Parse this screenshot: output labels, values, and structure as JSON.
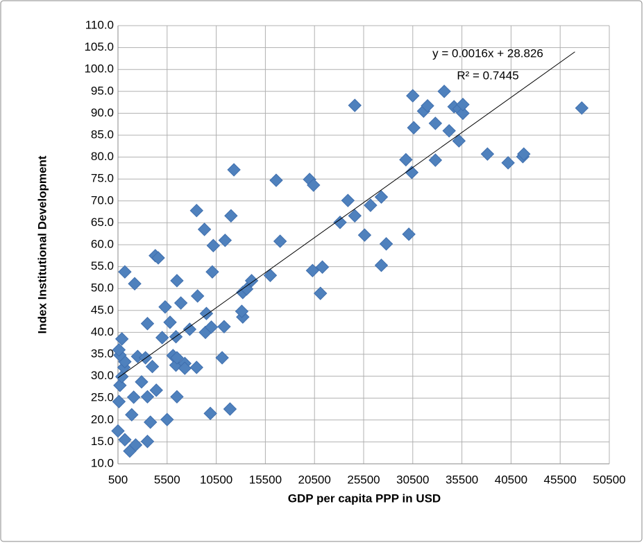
{
  "chart_data": {
    "type": "scatter",
    "x_label": "GDP per capita PPP in USD",
    "y_label": "Index Institutional Development",
    "color": "#4f81bd",
    "x": [
      500,
      1200,
      1700,
      2300,
      600,
      700,
      900,
      1100,
      1200,
      700,
      600,
      900,
      1200,
      2200,
      1900,
      2100,
      2900,
      2500,
      3300,
      3500,
      3500,
      4400,
      4000,
      3500,
      3800,
      4300,
      4600,
      5000,
      5300,
      5800,
      5500,
      6100,
      6400,
      6400,
      6500,
      6500,
      6500,
      6900,
      7300,
      7300,
      7800,
      8500,
      8600,
      8500,
      9300,
      9500,
      9400,
      9900,
      10000,
      10100,
      10200,
      11100,
      11300,
      11400,
      12000,
      11900,
      12300,
      13200,
      13100,
      13200,
      13600,
      14100,
      16000,
      16600,
      17000,
      20000,
      20400,
      20300,
      21100,
      21300,
      23100,
      23900,
      24600,
      24600,
      25600,
      26200,
      27300,
      27300,
      27800,
      29800,
      30100,
      30400,
      30600,
      30500,
      31600,
      32000,
      32800,
      32800,
      33700,
      34200,
      34700,
      35200,
      35200,
      35600,
      35600,
      38100,
      40200,
      41700,
      41800,
      47700
    ],
    "values": [
      17.5,
      15.5,
      12.9,
      14.3,
      24.2,
      27.9,
      29.9,
      32.0,
      33.3,
      34.8,
      36.0,
      38.5,
      53.8,
      51.1,
      21.2,
      25.2,
      28.7,
      34.5,
      34.2,
      15.1,
      25.3,
      26.8,
      32.2,
      42.0,
      19.5,
      57.5,
      57.0,
      38.8,
      45.8,
      42.3,
      20.1,
      34.7,
      39.0,
      32.5,
      34.2,
      25.3,
      51.8,
      46.7,
      32.9,
      31.8,
      40.7,
      32.0,
      48.3,
      67.8,
      63.5,
      44.3,
      40.0,
      21.5,
      41.2,
      53.8,
      59.8,
      34.2,
      41.3,
      61.0,
      66.6,
      22.5,
      77.1,
      43.5,
      44.8,
      49.1,
      49.9,
      51.8,
      53.0,
      74.7,
      60.8,
      74.9,
      73.6,
      54.1,
      48.9,
      54.9,
      65.1,
      70.1,
      66.6,
      91.8,
      62.2,
      69.0,
      70.9,
      55.3,
      60.2,
      79.4,
      62.4,
      76.5,
      86.7,
      94.0,
      90.5,
      91.7,
      87.7,
      79.3,
      95.0,
      86.0,
      91.5,
      83.7,
      91.0,
      90.0,
      92.0,
      80.7,
      78.7,
      80.1,
      80.7,
      91.2
    ],
    "trendline": {
      "equation": "y = 0.0016x + 28.826",
      "r_squared": "R² = 0.7445",
      "slope": 0.0016,
      "intercept": 28.826,
      "x_start": 500,
      "x_end": 47000,
      "color": "#000000"
    },
    "xlim": [
      500,
      50500
    ],
    "xticks": [
      500,
      5500,
      10500,
      15500,
      20500,
      25500,
      30500,
      35500,
      40500,
      45500,
      50500
    ],
    "ylim": [
      10,
      110
    ],
    "yticks": [
      {
        "value": 10,
        "label": "10.0"
      },
      {
        "value": 15,
        "label": "15.0"
      },
      {
        "value": 20,
        "label": "20.0"
      },
      {
        "value": 25,
        "label": "25.0"
      },
      {
        "value": 30,
        "label": "30.0"
      },
      {
        "value": 35,
        "label": "35.0"
      },
      {
        "value": 40,
        "label": "40.0"
      },
      {
        "value": 45,
        "label": "45.0"
      },
      {
        "value": 50,
        "label": "50.0"
      },
      {
        "value": 55,
        "label": "55.0"
      },
      {
        "value": 60,
        "label": "60.0"
      },
      {
        "value": 65,
        "label": "65.0"
      },
      {
        "value": 70,
        "label": "70.0"
      },
      {
        "value": 75,
        "label": "75.0"
      },
      {
        "value": 80,
        "label": "80.0"
      },
      {
        "value": 85,
        "label": "85.0"
      },
      {
        "value": 90,
        "label": "90.0"
      },
      {
        "value": 95,
        "label": "95.0"
      },
      {
        "value": 100,
        "label": "100.0"
      },
      {
        "value": 105,
        "label": "105.0"
      },
      {
        "value": 110,
        "label": "110.0"
      }
    ],
    "grid": true
  }
}
